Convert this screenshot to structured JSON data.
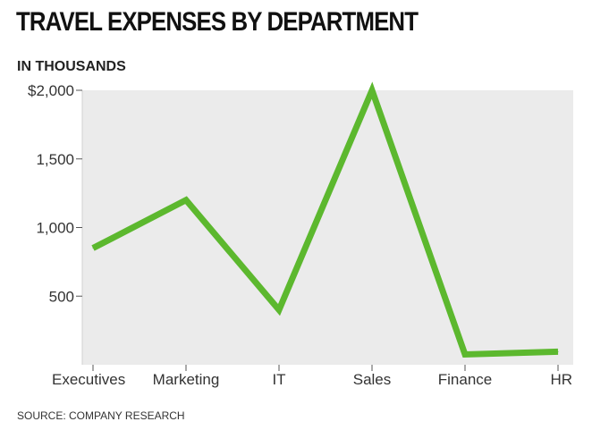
{
  "chart_data": {
    "type": "line",
    "title": "TRAVEL EXPENSES BY DEPARTMENT",
    "subtitle": "IN THOUSANDS",
    "source": "SOURCE: COMPANY RESEARCH",
    "categories": [
      "Executives",
      "Marketing",
      "IT",
      "Sales",
      "Finance",
      "HR"
    ],
    "series": [
      {
        "name": "Travel expenses",
        "values": [
          850,
          1200,
          400,
          2000,
          75,
          95
        ],
        "color": "#5cb82e"
      }
    ],
    "ylim": [
      0,
      2000
    ],
    "yticks": [
      {
        "value": 500,
        "label": "500"
      },
      {
        "value": 1000,
        "label": "1,000"
      },
      {
        "value": 1500,
        "label": "1,500"
      },
      {
        "value": 2000,
        "label": "$2,000"
      }
    ],
    "xlabel": "",
    "ylabel": "",
    "grid": false,
    "plot_background": "#ebebeb"
  }
}
